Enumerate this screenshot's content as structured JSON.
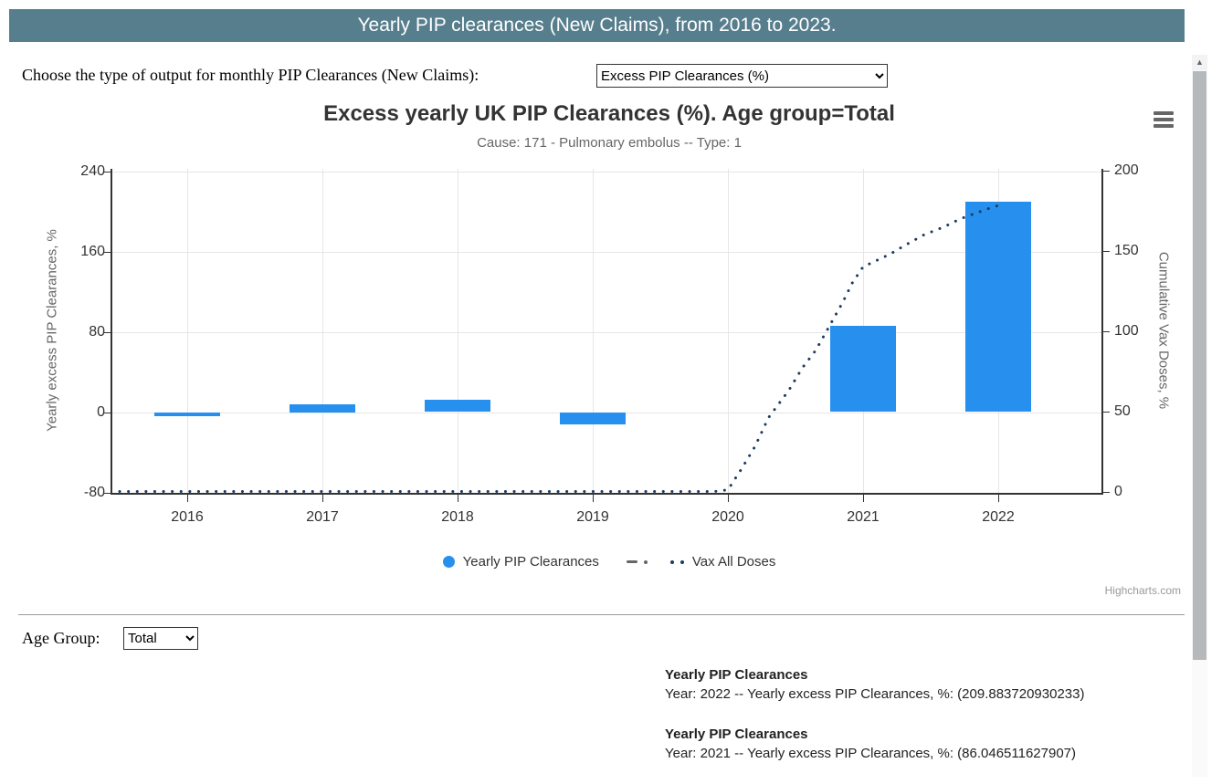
{
  "page": {
    "header": {
      "title": "Yearly PIP clearances (New Claims), from 2016 to 2023.",
      "bg": "#577e8d"
    },
    "controls": {
      "output_label": "Choose the type of output for monthly PIP Clearances (New Claims):",
      "output_value": "Excess PIP Clearances (%)"
    },
    "age_group": {
      "label": "Age Group:",
      "value": "Total"
    },
    "tooltips": [
      {
        "title": "Yearly PIP Clearances",
        "line": "Year: 2022 -- Yearly excess PIP Clearances, %: (209.883720930233)"
      },
      {
        "title": "Yearly PIP Clearances",
        "line": "Year: 2021 -- Yearly excess PIP Clearances, %: (86.046511627907)"
      }
    ],
    "credits": "Highcharts.com",
    "menu_icon": "hamburger-icon",
    "scrollbar_up_glyph": "▲"
  },
  "chart_data": {
    "type": "bar",
    "title": "Excess yearly UK PIP Clearances (%). Age group=Total",
    "subtitle": "Cause: 171 - Pulmonary embolus -- Type: 1",
    "categories": [
      "2016",
      "2017",
      "2018",
      "2019",
      "2020",
      "2021",
      "2022"
    ],
    "series": [
      {
        "name": "Yearly PIP Clearances",
        "type": "column",
        "axis": "left",
        "color": "#2790ee",
        "values": [
          -4.5,
          7.5,
          12,
          -12.5,
          0,
          86.046511627907,
          209.883720930233
        ]
      },
      {
        "name": "Vax All Doses",
        "type": "line",
        "style": "dotted",
        "axis": "right",
        "color": "#1b3a5f",
        "values": [
          0,
          0,
          0,
          0,
          0,
          140,
          179
        ],
        "curve": [
          [
            2015.5,
            0
          ],
          [
            2016,
            0
          ],
          [
            2017,
            0
          ],
          [
            2018,
            0
          ],
          [
            2019,
            0
          ],
          [
            2019.9,
            0
          ],
          [
            2020.0,
            1
          ],
          [
            2020.1,
            14
          ],
          [
            2020.2,
            28
          ],
          [
            2020.3,
            46
          ],
          [
            2020.45,
            63
          ],
          [
            2020.55,
            77
          ],
          [
            2020.65,
            88
          ],
          [
            2020.75,
            103
          ],
          [
            2020.85,
            118
          ],
          [
            2020.92,
            130
          ],
          [
            2021.0,
            140
          ],
          [
            2021.1,
            144
          ],
          [
            2021.2,
            148
          ],
          [
            2021.3,
            153
          ],
          [
            2021.45,
            160
          ],
          [
            2021.6,
            165
          ],
          [
            2021.72,
            170
          ],
          [
            2021.85,
            174
          ],
          [
            2021.95,
            177
          ],
          [
            2022.03,
            179
          ]
        ]
      }
    ],
    "yaxis_left": {
      "title": "Yearly excess PIP Clearances, %",
      "ticks": [
        240,
        160,
        80,
        0,
        -80
      ],
      "min": -80,
      "max": 240
    },
    "yaxis_right": {
      "title": "Cumulative Vax Doses, %",
      "ticks": [
        200,
        150,
        100,
        50,
        0
      ],
      "min": 0,
      "max": 200
    },
    "legend": [
      "Yearly PIP Clearances",
      "Vax All Doses"
    ],
    "grid": true,
    "legend_position": "bottom-center"
  }
}
